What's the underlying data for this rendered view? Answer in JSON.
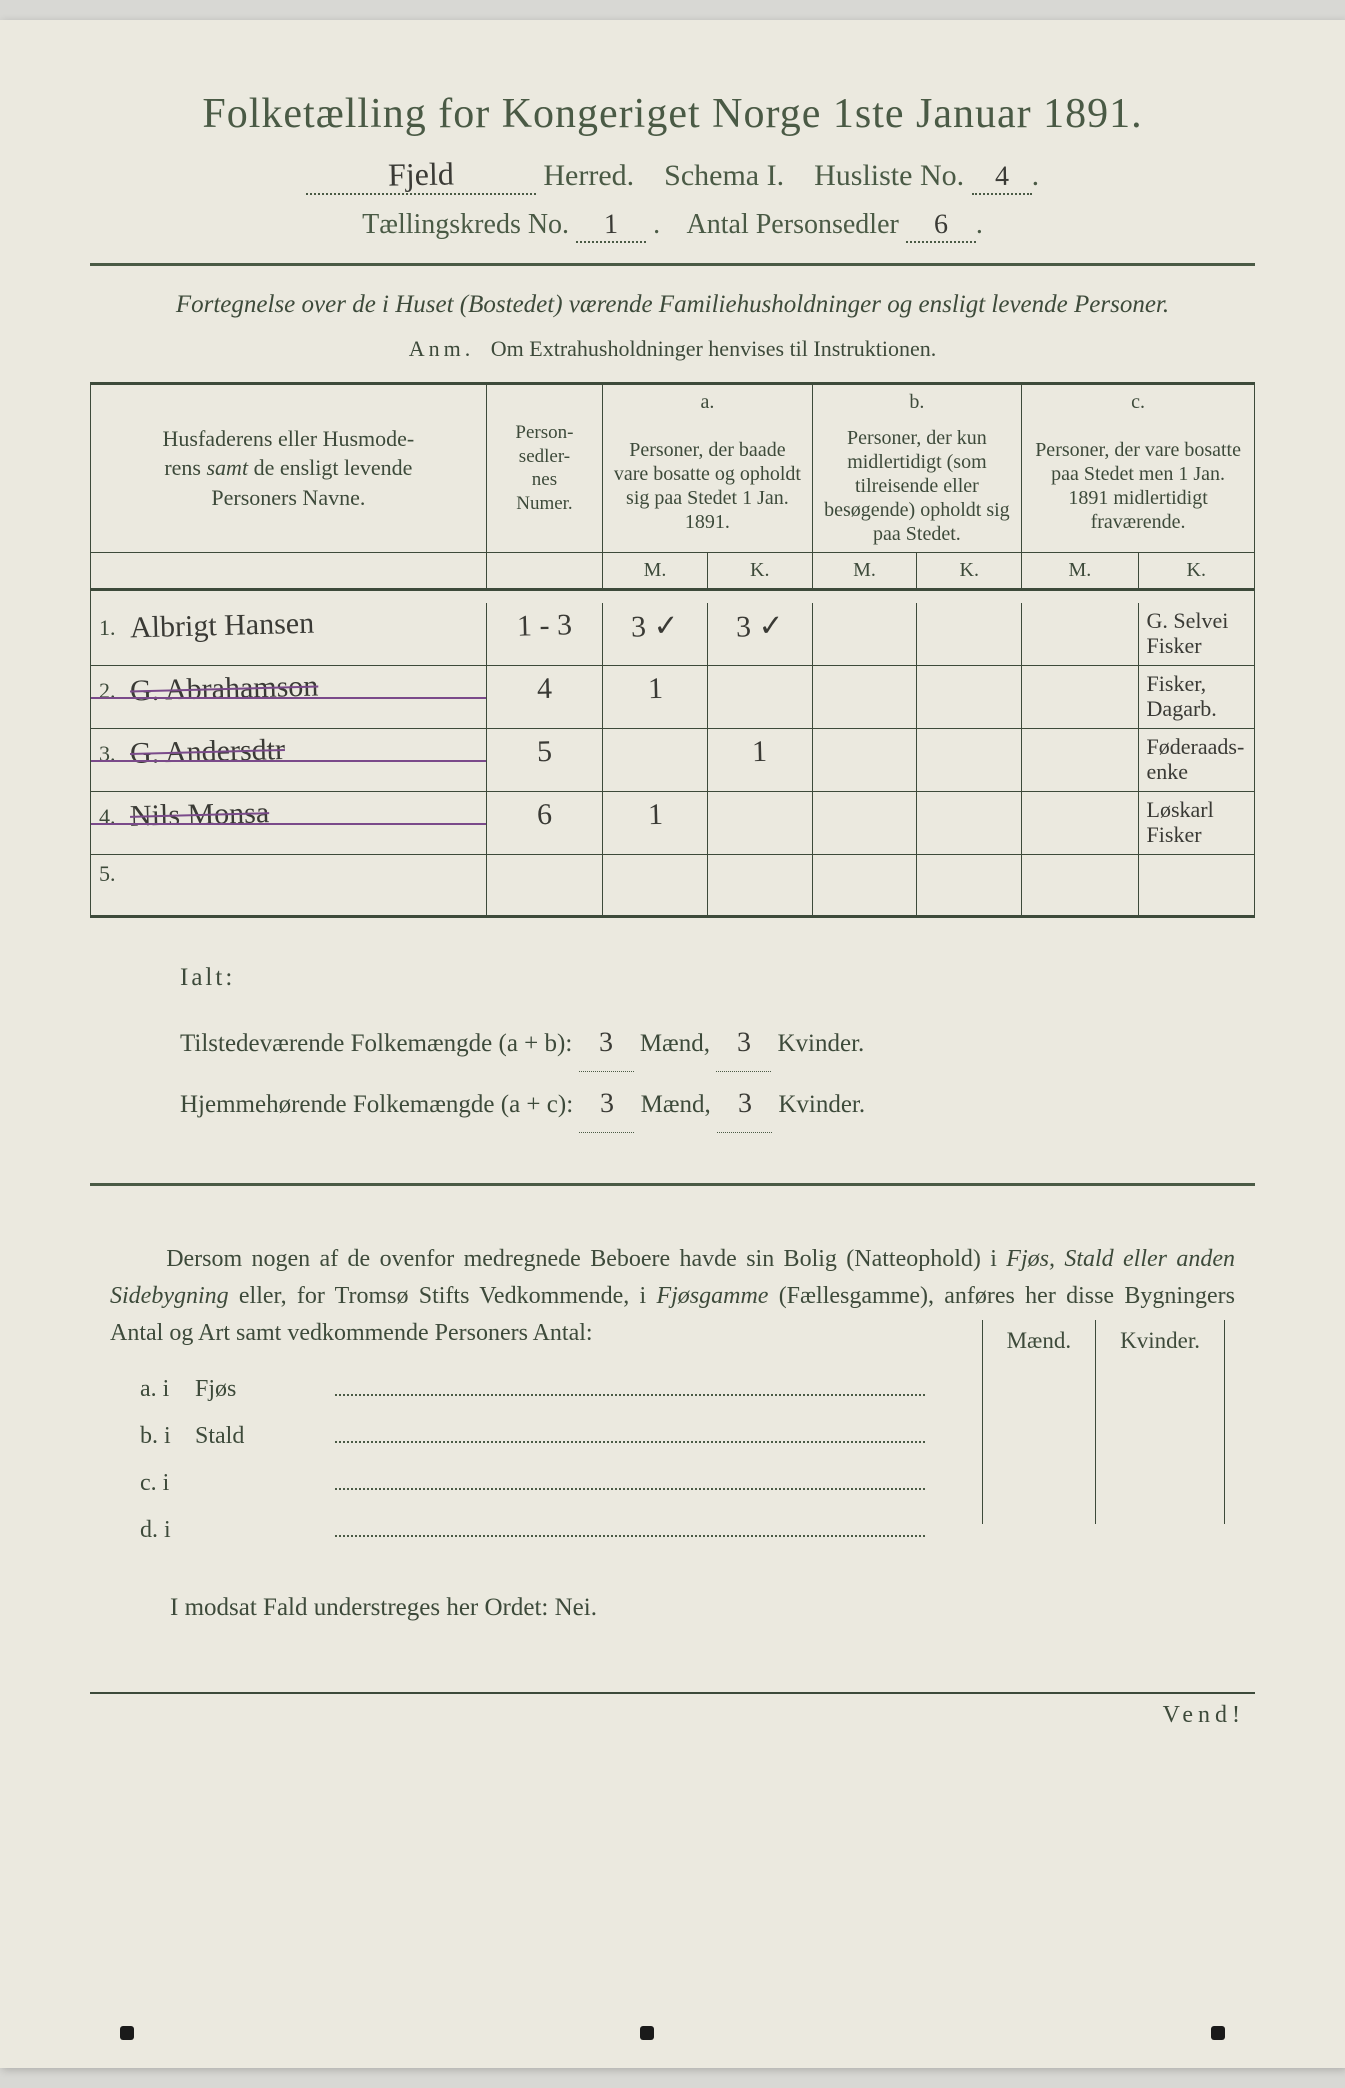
{
  "colors": {
    "paper": "#ebe9df",
    "ink_print": "#4a5a45",
    "ink_hand": "#3a3a35",
    "purple": "#7a4a8a"
  },
  "header": {
    "title": "Folketælling for Kongeriget Norge 1ste Januar 1891.",
    "herred_value": "Fjeld",
    "herred_label": "Herred.",
    "schema_label": "Schema I.",
    "husliste_label": "Husliste No.",
    "husliste_value": "4",
    "kreds_label": "Tællingskreds No.",
    "kreds_value": "1",
    "antal_label": "Antal Personsedler",
    "antal_value": "6"
  },
  "section_a": {
    "intro": "Fortegnelse over de i Huset (Bostedet) værende Familiehusholdninger og ensligt levende Personer.",
    "anm_label": "Anm.",
    "anm_text": "Om Extrahusholdninger henvises til Instruktionen."
  },
  "table": {
    "col_names_header": "Husfaderens eller Husmoderens samt de ensligt levende Personers Navne.",
    "col_nums_header": "Personsedlernes Numer.",
    "a_label": "a.",
    "a_desc": "Personer, der baade vare bosatte og opholdt sig paa Stedet 1 Jan. 1891.",
    "b_label": "b.",
    "b_desc": "Personer, der kun midlertidigt (som tilreisende eller besøgende) opholdt sig paa Stedet.",
    "c_label": "c.",
    "c_desc": "Personer, der vare bosatte paa Stedet men 1 Jan. 1891 midlertidigt fraværende.",
    "m": "M.",
    "k": "K.",
    "rows": [
      {
        "n": "1.",
        "name": "Albrigt Hansen",
        "nums": "1 - 3",
        "aM": "3 ✓",
        "aK": "3 ✓",
        "bM": "",
        "bK": "",
        "cM": "",
        "cK": "G. Selvei Fisker",
        "struck": false
      },
      {
        "n": "2.",
        "name": "G. Abrahamson",
        "nums": "4",
        "aM": "1",
        "aK": "",
        "bM": "",
        "bK": "",
        "cM": "",
        "cK": "Fisker, Dagarb.",
        "struck": true
      },
      {
        "n": "3.",
        "name": "G. Andersdtr",
        "nums": "5",
        "aM": "",
        "aK": "1",
        "bM": "",
        "bK": "",
        "cM": "",
        "cK": "Føderaads-enke",
        "struck": true
      },
      {
        "n": "4.",
        "name": "Nils Monsa",
        "nums": "6",
        "aM": "1",
        "aK": "",
        "bM": "",
        "bK": "",
        "cM": "",
        "cK": "Løskarl Fisker",
        "struck": true
      },
      {
        "n": "5.",
        "name": "",
        "nums": "",
        "aM": "",
        "aK": "",
        "bM": "",
        "bK": "",
        "cM": "",
        "cK": "",
        "struck": false
      }
    ]
  },
  "totals": {
    "ialt_label": "Ialt:",
    "tilstede_label": "Tilstedeværende Folkemængde (a + b):",
    "hjemme_label": "Hjemmehørende Folkemængde (a + c):",
    "maend_label": "Mænd,",
    "kvinder_label": "Kvinder.",
    "tilstede_m": "3",
    "tilstede_k": "3",
    "hjemme_m": "3",
    "hjemme_k": "3"
  },
  "paragraph": {
    "text1": "Dersom nogen af de ovenfor medregnede Beboere havde sin Bolig (Natteophold) i ",
    "em1": "Fjøs, Stald eller anden Sidebygning",
    "text2": " eller, for Tromsø Stifts Vedkommende, i ",
    "em2": "Fjøsgamme",
    "text3": " (Fællesgamme), anføres her disse Bygningers Antal og Art samt vedkommende Personers Antal:"
  },
  "buildings": {
    "maend": "Mænd.",
    "kvinder": "Kvinder.",
    "rows": [
      {
        "key": "a.  i",
        "word": "Fjøs"
      },
      {
        "key": "b.  i",
        "word": "Stald"
      },
      {
        "key": "c.  i",
        "word": ""
      },
      {
        "key": "d.  i",
        "word": ""
      }
    ]
  },
  "nei_line": "I modsat Fald understreges her Ordet: Nei.",
  "vend": "Vend!"
}
